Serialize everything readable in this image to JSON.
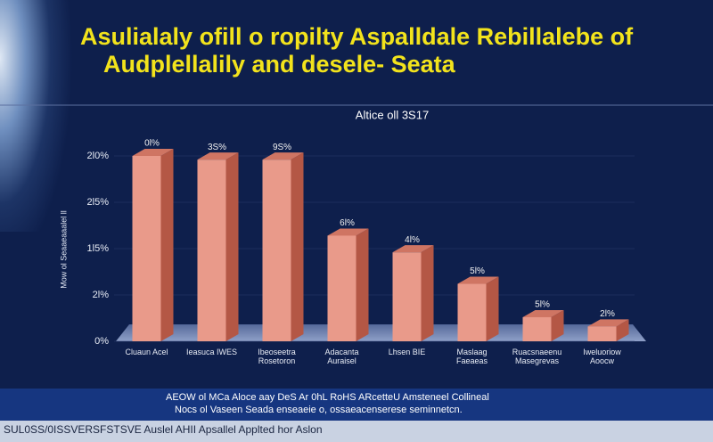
{
  "chart_data": {
    "type": "bar3d",
    "title": [
      "Asulialaly ofill o ropilty Aspalldale Rebillalebe of",
      "Audplellalily and desele- Seata"
    ],
    "subtitle": "Altice oll 3S17",
    "y_label": "Mow ol Seaaeaaalel ll",
    "categories": [
      "Cluaun Acel",
      "Ieasuca IWES",
      "Ibeoseetra Rosetoron",
      "Adacanta Auraisel",
      "Lhsen BIE",
      "Maslaag Faeaeas",
      "Ruacsnaeenu Masegrevas",
      "Iweluoriow Aoocw"
    ],
    "values": [
      100,
      98,
      98,
      57,
      48,
      31,
      13,
      8
    ],
    "value_labels": [
      "0l%",
      "3S%",
      "9S%",
      "6l%",
      "4l%",
      "5l%",
      "5l%",
      "2l%"
    ],
    "color": "#e99a8a",
    "ylim": [
      0,
      100
    ],
    "yticks": [
      {
        "value": 0,
        "label": "0%"
      },
      {
        "value": 25,
        "label": "2l%"
      },
      {
        "value": 50,
        "label": "1l5%"
      },
      {
        "value": 75,
        "label": "2l5%"
      },
      {
        "value": 100,
        "label": "2l0%"
      }
    ],
    "grid": true,
    "footnotes": [
      "AEOW ol MCa Aloce aay DeS Ar 0hL RoHS ARcetteU Amsteneel Collineal",
      "Nocs ol Vaseen Seada enseaeie o, ossaeacenserese seminnetcn."
    ],
    "source": "SUL0SS/0ISSVERSFSTSVE Auslel AHII Apsallel Applted hor Aslon"
  }
}
